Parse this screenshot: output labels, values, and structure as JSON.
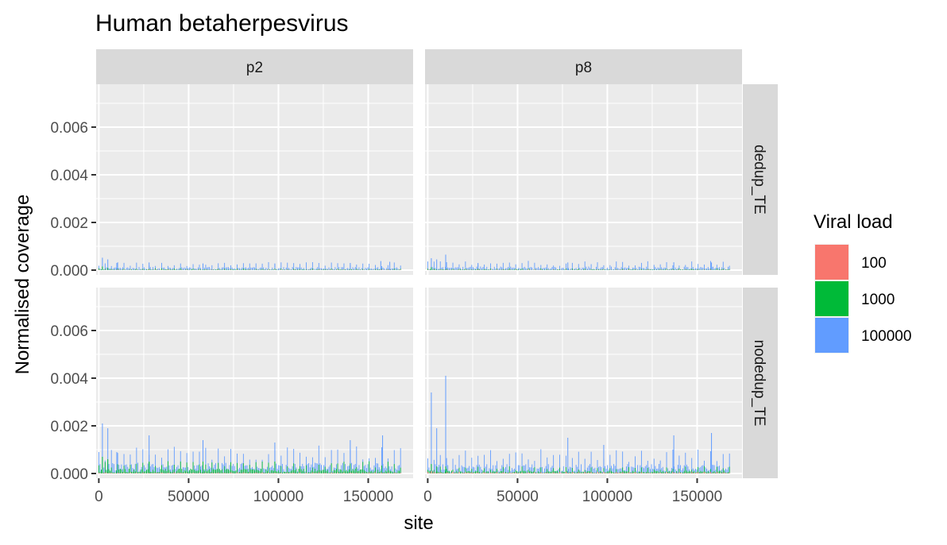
{
  "chart_data": {
    "type": "bar",
    "title": "Human betaherpesvirus",
    "xlabel": "site",
    "ylabel": "Normalised coverage",
    "xlim": [
      -1500,
      175000
    ],
    "ylim": [
      -0.0002,
      0.0078
    ],
    "x_ticks": [
      0,
      50000,
      100000,
      150000
    ],
    "x_tick_labels": [
      "0",
      "50000",
      "100000",
      "150000"
    ],
    "y_ticks": [
      0,
      0.002,
      0.004,
      0.006
    ],
    "y_tick_labels": [
      "0.000",
      "0.002",
      "0.004",
      "0.006"
    ],
    "grid": true,
    "facet_cols": [
      "p2",
      "p8"
    ],
    "facet_rows": [
      "dedup_TE",
      "nodedup_TE"
    ],
    "legend": {
      "title": "Viral load",
      "position": "right",
      "entries": [
        {
          "label": "100",
          "color": "#F8766D"
        },
        {
          "label": "1000",
          "color": "#00BA38"
        },
        {
          "label": "100000",
          "color": "#619CFF"
        }
      ]
    },
    "site_range": [
      0,
      168000
    ],
    "panels": [
      {
        "col": "p2",
        "row": "dedup_TE",
        "series": [
          {
            "name": "100",
            "base": 1e-05,
            "peaks": []
          },
          {
            "name": "1000",
            "base": 3e-05,
            "peaks": [
              [
                2000,
                0.00015
              ],
              [
                5000,
                0.0001
              ]
            ]
          },
          {
            "name": "100000",
            "base": 0.00013,
            "peaks": [
              [
                2000,
                0.00052
              ],
              [
                5000,
                0.00045
              ],
              [
                10000,
                0.0003
              ],
              [
                28000,
                0.00032
              ],
              [
                58000,
                0.00028
              ],
              [
                98000,
                0.00028
              ],
              [
                140000,
                0.0003
              ],
              [
                157000,
                0.00038
              ],
              [
                162000,
                0.00035
              ]
            ]
          }
        ]
      },
      {
        "col": "p8",
        "row": "dedup_TE",
        "series": [
          {
            "name": "100",
            "base": 1e-05,
            "peaks": []
          },
          {
            "name": "1000",
            "base": 3e-05,
            "peaks": [
              [
                2000,
                0.00012
              ]
            ]
          },
          {
            "name": "100000",
            "base": 0.00015,
            "peaks": [
              [
                2000,
                0.0005
              ],
              [
                5000,
                0.00045
              ],
              [
                10000,
                0.00065
              ],
              [
                28000,
                0.0003
              ],
              [
                78000,
                0.00032
              ],
              [
                137000,
                0.00033
              ],
              [
                158000,
                0.00032
              ]
            ]
          }
        ]
      },
      {
        "col": "p2",
        "row": "nodedup_TE",
        "series": [
          {
            "name": "100",
            "base": 2e-05,
            "peaks": []
          },
          {
            "name": "1000",
            "base": 0.0002,
            "peaks": [
              [
                2000,
                0.0007
              ],
              [
                5000,
                0.0006
              ],
              [
                28000,
                0.0005
              ],
              [
                58000,
                0.0005
              ],
              [
                98000,
                0.0005
              ]
            ]
          },
          {
            "name": "100000",
            "base": 0.00045,
            "peaks": [
              [
                2000,
                0.0021
              ],
              [
                5000,
                0.0019
              ],
              [
                10000,
                0.0009
              ],
              [
                28000,
                0.0016
              ],
              [
                58000,
                0.0014
              ],
              [
                98000,
                0.0013
              ],
              [
                140000,
                0.0014
              ],
              [
                158000,
                0.0016
              ]
            ]
          }
        ]
      },
      {
        "col": "p8",
        "row": "nodedup_TE",
        "series": [
          {
            "name": "100",
            "base": 3e-05,
            "peaks": [
              [
                2000,
                0.0001
              ]
            ]
          },
          {
            "name": "1000",
            "base": 0.00012,
            "peaks": [
              [
                2000,
                0.0004
              ],
              [
                5000,
                0.0003
              ],
              [
                10000,
                0.0003
              ]
            ]
          },
          {
            "name": "100000",
            "base": 0.0004,
            "peaks": [
              [
                2000,
                0.0034
              ],
              [
                5000,
                0.0019
              ],
              [
                10000,
                0.0041
              ],
              [
                78000,
                0.0015
              ],
              [
                98000,
                0.0012
              ],
              [
                137000,
                0.0016
              ],
              [
                158000,
                0.0017
              ]
            ]
          }
        ]
      }
    ]
  }
}
